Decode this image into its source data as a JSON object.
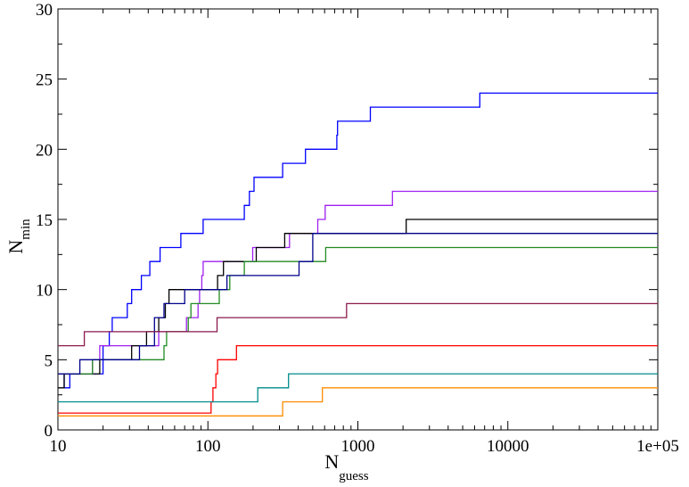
{
  "chart_data": {
    "type": "line",
    "step": true,
    "title": "",
    "xlabel": {
      "main": "N",
      "sub": "guess"
    },
    "ylabel": {
      "main": "N",
      "sub": "min"
    },
    "xscale": "log",
    "xlim": [
      10,
      100000
    ],
    "ylim": [
      0,
      30
    ],
    "x_tick_labels": [
      "10",
      "100",
      "1000",
      "10000",
      "1e+05"
    ],
    "x_tick_values": [
      10,
      100,
      1000,
      10000,
      100000
    ],
    "y_tick_values": [
      0,
      5,
      10,
      15,
      20,
      25,
      30
    ],
    "grid": false,
    "legend": "none",
    "series": [
      {
        "color": "#0000ff",
        "points": [
          [
            10,
            4
          ],
          [
            11,
            3
          ],
          [
            12,
            4
          ],
          [
            20,
            6
          ],
          [
            22,
            7
          ],
          [
            23,
            8
          ],
          [
            29,
            9
          ],
          [
            31,
            10
          ],
          [
            36,
            11
          ],
          [
            39,
            11
          ],
          [
            41,
            12
          ],
          [
            43,
            12
          ],
          [
            46,
            12
          ],
          [
            48,
            13
          ],
          [
            57,
            13
          ],
          [
            66,
            14
          ],
          [
            70,
            14
          ],
          [
            93,
            15
          ],
          [
            157,
            15
          ],
          [
            175,
            16
          ],
          [
            183,
            16
          ],
          [
            189,
            17
          ],
          [
            203,
            18
          ],
          [
            265,
            18
          ],
          [
            315,
            19
          ],
          [
            390,
            19
          ],
          [
            447,
            20
          ],
          [
            724,
            21
          ],
          [
            732,
            22
          ],
          [
            1211,
            23
          ],
          [
            6500,
            24
          ],
          [
            100000,
            24
          ]
        ]
      },
      {
        "color": "#a020f0",
        "points": [
          [
            10,
            4
          ],
          [
            13,
            4
          ],
          [
            17,
            5
          ],
          [
            19,
            6
          ],
          [
            21,
            6
          ],
          [
            29,
            6
          ],
          [
            47,
            7
          ],
          [
            66,
            7
          ],
          [
            72,
            8
          ],
          [
            86,
            9
          ],
          [
            88,
            10
          ],
          [
            91,
            11
          ],
          [
            93,
            12
          ],
          [
            199,
            13
          ],
          [
            350,
            14
          ],
          [
            540,
            15
          ],
          [
            575,
            15
          ],
          [
            605,
            16
          ],
          [
            1700,
            17
          ],
          [
            100000,
            17
          ]
        ]
      },
      {
        "color": "#000000",
        "points": [
          [
            10,
            3
          ],
          [
            11,
            4
          ],
          [
            19,
            5
          ],
          [
            20,
            5
          ],
          [
            31,
            6
          ],
          [
            32,
            6
          ],
          [
            39,
            7
          ],
          [
            47,
            8
          ],
          [
            52,
            9
          ],
          [
            55,
            10
          ],
          [
            108,
            10
          ],
          [
            116,
            11
          ],
          [
            127,
            12
          ],
          [
            210,
            13
          ],
          [
            325,
            14
          ],
          [
            2100,
            15
          ],
          [
            2230,
            15
          ],
          [
            100000,
            15
          ]
        ]
      },
      {
        "color": "#228b22",
        "points": [
          [
            10,
            4
          ],
          [
            12,
            4
          ],
          [
            17,
            5
          ],
          [
            25,
            5
          ],
          [
            51,
            6
          ],
          [
            53,
            7
          ],
          [
            74,
            8
          ],
          [
            77,
            9
          ],
          [
            119,
            10
          ],
          [
            140,
            11
          ],
          [
            175,
            12
          ],
          [
            240,
            12
          ],
          [
            410,
            12
          ],
          [
            610,
            13
          ],
          [
            7300,
            13
          ],
          [
            100000,
            13
          ]
        ]
      },
      {
        "color": "#00008b",
        "points": [
          [
            10,
            4
          ],
          [
            14,
            5
          ],
          [
            28,
            5
          ],
          [
            35,
            6
          ],
          [
            44,
            8
          ],
          [
            47,
            8
          ],
          [
            51,
            9
          ],
          [
            70,
            10
          ],
          [
            108,
            10
          ],
          [
            134,
            11
          ],
          [
            240,
            11
          ],
          [
            405,
            12
          ],
          [
            500,
            14
          ],
          [
            100000,
            14
          ]
        ]
      },
      {
        "color": "#8b1a4d",
        "points": [
          [
            10,
            6
          ],
          [
            15,
            7
          ],
          [
            110,
            7
          ],
          [
            115,
            8
          ],
          [
            260,
            8
          ],
          [
            405,
            8
          ],
          [
            840,
            9
          ],
          [
            100000,
            9
          ]
        ]
      },
      {
        "color": "#ff0000",
        "points": [
          [
            10,
            1.2
          ],
          [
            105,
            2
          ],
          [
            108,
            3
          ],
          [
            113,
            4
          ],
          [
            116,
            5
          ],
          [
            155,
            6
          ],
          [
            100000,
            6
          ]
        ]
      },
      {
        "color": "#008b8b",
        "points": [
          [
            10,
            2
          ],
          [
            215,
            3
          ],
          [
            345,
            4
          ],
          [
            100000,
            4
          ]
        ]
      },
      {
        "color": "#ff8c00",
        "points": [
          [
            10,
            1
          ],
          [
            315,
            2
          ],
          [
            580,
            3
          ],
          [
            100000,
            3
          ]
        ]
      }
    ]
  }
}
